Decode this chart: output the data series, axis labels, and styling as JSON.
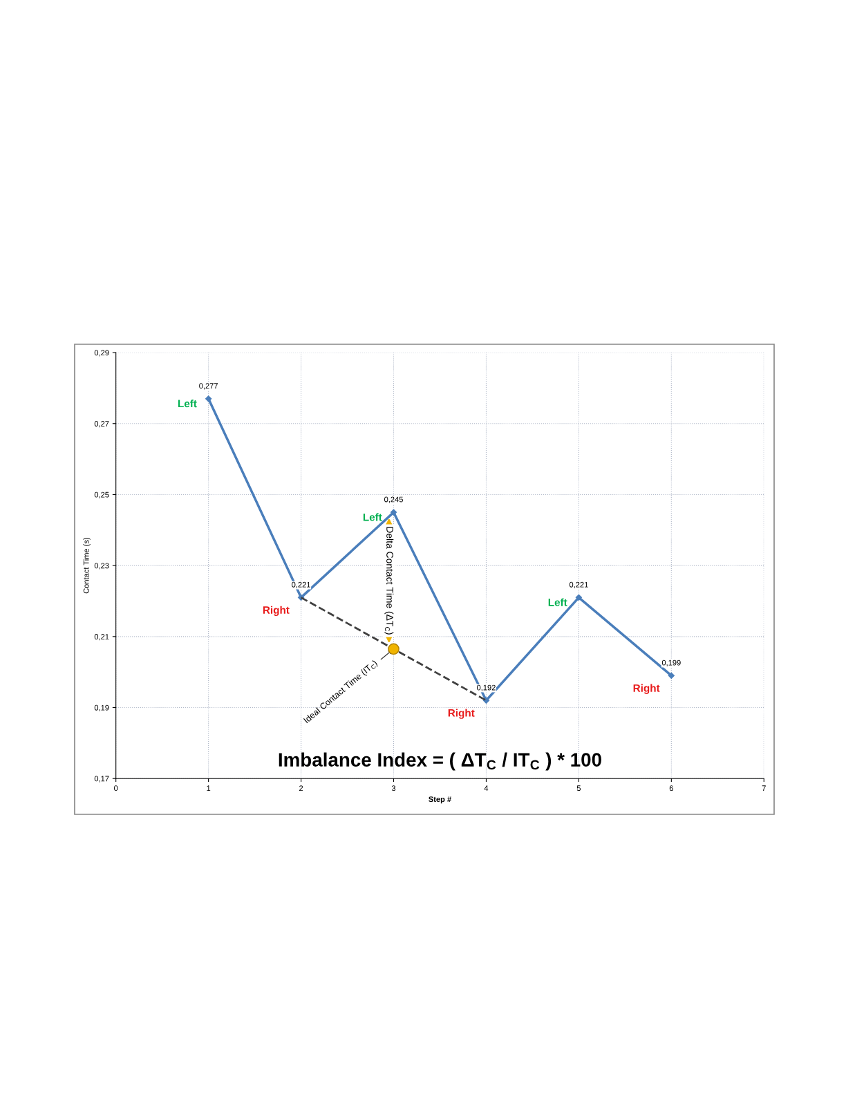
{
  "chart_data": {
    "type": "line",
    "xlabel": "Step #",
    "ylabel": "Contact Time (s)",
    "xlim": [
      0,
      7
    ],
    "xticks": [
      0,
      1,
      2,
      3,
      4,
      5,
      6,
      7
    ],
    "ylim": [
      0.17,
      0.29
    ],
    "yticks": [
      {
        "value": 0.17,
        "label": "0,17"
      },
      {
        "value": 0.19,
        "label": "0,19"
      },
      {
        "value": 0.21,
        "label": "0,21"
      },
      {
        "value": 0.23,
        "label": "0,23"
      },
      {
        "value": 0.25,
        "label": "0,25"
      },
      {
        "value": 0.27,
        "label": "0,27"
      },
      {
        "value": 0.29,
        "label": "0,29"
      }
    ],
    "grid": true,
    "legend": false,
    "series": [
      {
        "color": "#4a7ebb",
        "marker": "diamond",
        "line_style": "solid",
        "x": [
          1,
          2,
          3,
          4,
          5,
          6
        ],
        "values": [
          0.277,
          0.221,
          0.245,
          0.192,
          0.221,
          0.199
        ],
        "value_labels": [
          "0,277",
          "0,221",
          "0,245",
          "0,192",
          "0,221",
          "0,199"
        ]
      },
      {
        "type": "line",
        "color": "#404040",
        "marker": "none",
        "line_style": "dashed",
        "x": [
          2,
          4
        ],
        "values": [
          0.221,
          0.192
        ]
      },
      {
        "type": "scatter",
        "color": "#f0b400",
        "marker": "circle",
        "x": [
          3
        ],
        "values": [
          0.2065
        ]
      }
    ],
    "annotations": [
      {
        "text": "Left",
        "x": 1,
        "y": 0.277
      },
      {
        "text": "Right",
        "x": 2,
        "y": 0.221
      },
      {
        "text": "Left",
        "x": 3,
        "y": 0.245
      },
      {
        "text": "Right",
        "x": 4,
        "y": 0.192
      },
      {
        "text": "Left",
        "x": 5,
        "y": 0.221
      },
      {
        "text": "Right",
        "x": 6,
        "y": 0.199
      },
      {
        "text": "Delta Contact Time (ΔT$_{C}$)",
        "x": 3,
        "y": 0.245
      },
      {
        "text": "Ideal Contact Time (IT$_{C}$)",
        "x": 3,
        "y": 0.2065
      },
      "Imbalance Index = ( ΔT$_{C}$ / IT$_{C}$ ) * 100"
    ]
  }
}
